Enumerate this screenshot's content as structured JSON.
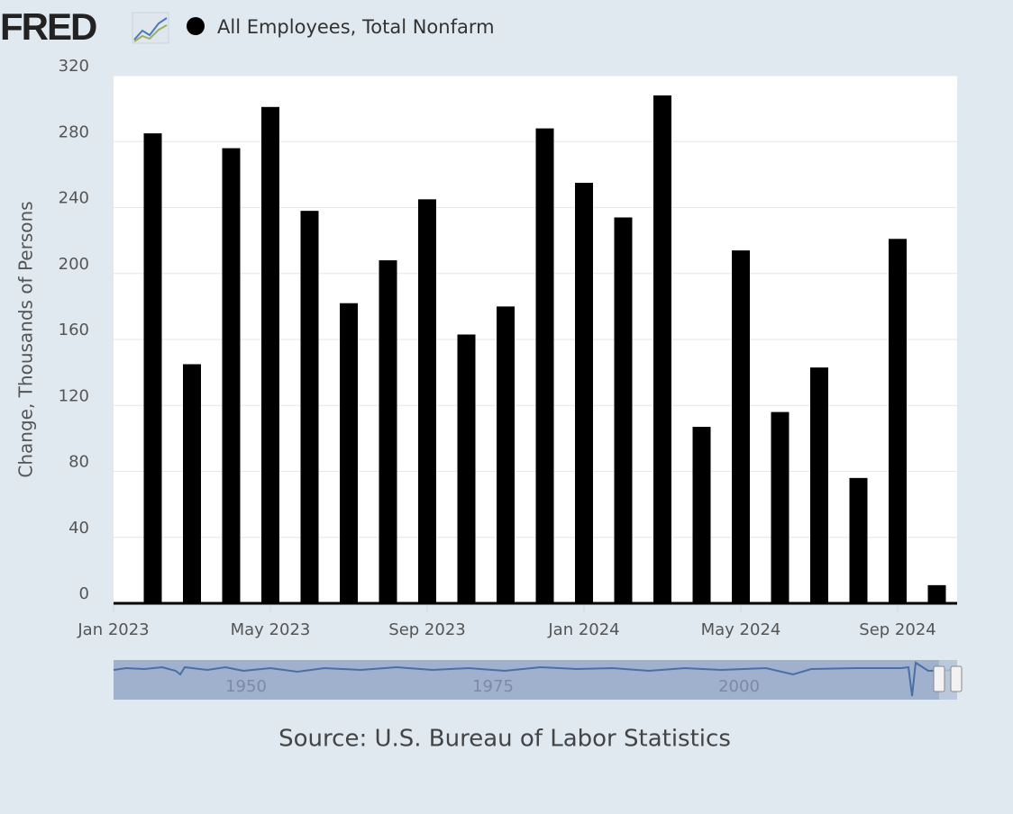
{
  "chart_data": {
    "type": "bar",
    "logo": "FRED",
    "legend": "All Employees, Total Nonfarm",
    "ylabel": "Change, Thousands of Persons",
    "source": "Source: U.S. Bureau of Labor Statistics",
    "color": "#000000",
    "grid": true,
    "x": [
      "2023-02",
      "2023-03",
      "2023-04",
      "2023-05",
      "2023-06",
      "2023-07",
      "2023-08",
      "2023-09",
      "2023-10",
      "2023-11",
      "2023-12",
      "2024-01",
      "2024-02",
      "2024-03",
      "2024-04",
      "2024-05",
      "2024-06",
      "2024-07",
      "2024-08",
      "2024-09",
      "2024-10"
    ],
    "values": [
      285,
      145,
      276,
      301,
      238,
      182,
      208,
      245,
      163,
      180,
      288,
      255,
      234,
      308,
      107,
      214,
      116,
      143,
      76,
      221,
      11
    ],
    "xticks": [
      {
        "value": "2023-01",
        "label": "Jan 2023"
      },
      {
        "value": "2023-05",
        "label": "May 2023"
      },
      {
        "value": "2023-09",
        "label": "Sep 2023"
      },
      {
        "value": "2024-01",
        "label": "Jan 2024"
      },
      {
        "value": "2024-05",
        "label": "May 2024"
      },
      {
        "value": "2024-09",
        "label": "Sep 2024"
      }
    ],
    "ylim": [
      0,
      320
    ],
    "yticks": [
      0,
      40,
      80,
      120,
      160,
      200,
      240,
      280,
      320
    ],
    "navigator": {
      "labels": [
        "1950",
        "1975",
        "2000"
      ]
    }
  }
}
